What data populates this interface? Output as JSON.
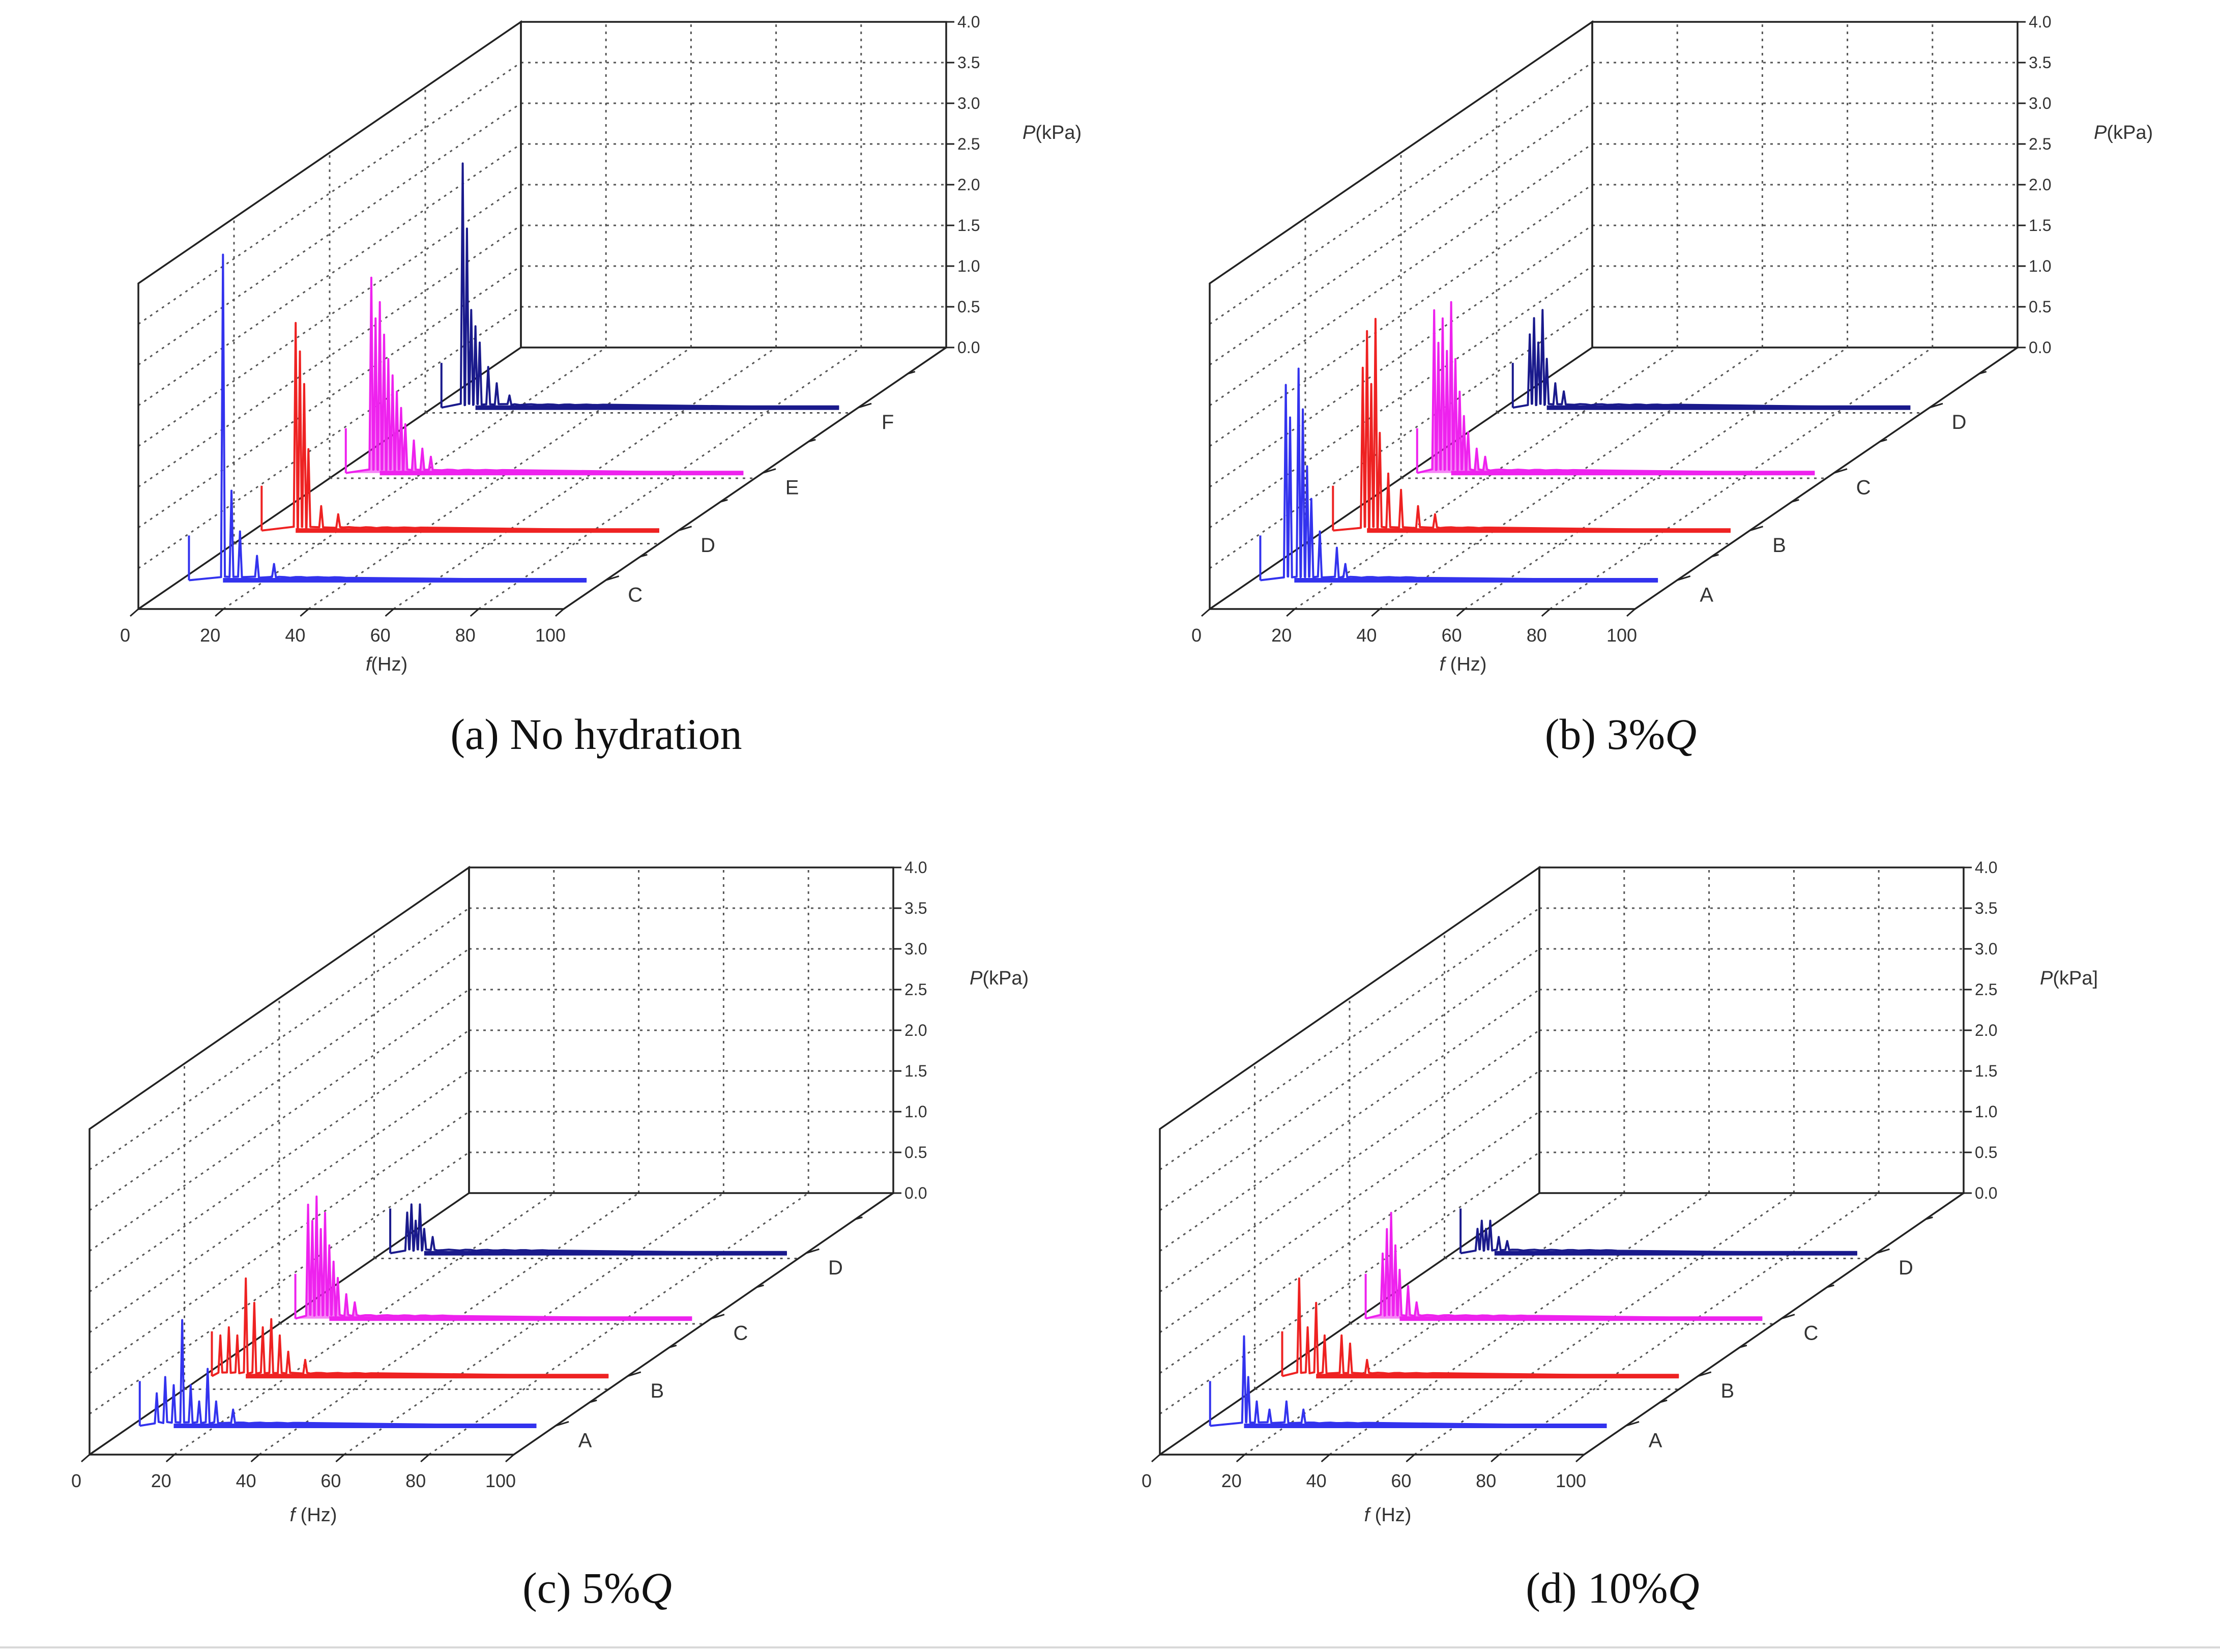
{
  "colors": {
    "blue": "#3333ee",
    "red": "#ee2222",
    "magenta": "#ee22ee",
    "navy": "#1a1a8c"
  },
  "chart_data": [
    {
      "type": "line",
      "panel": "a",
      "caption": "(a) No hydration",
      "caption_italic": "",
      "xlabel_italic": "f",
      "xlabel_rest": "(Hz)",
      "zlabel_italic": "P",
      "zlabel_rest": "(kPa)",
      "x_ticks": [
        "0",
        "20",
        "40",
        "60",
        "80",
        "100"
      ],
      "z_ticks": [
        "0.0",
        "0.5",
        "1.0",
        "1.5",
        "2.0",
        "2.5",
        "3.0",
        "3.5",
        "4.0"
      ],
      "xlim": [
        0,
        100
      ],
      "zlim": [
        0,
        4
      ],
      "series": [
        {
          "name": "C",
          "color": "#3333ee",
          "peaks": [
            [
              10,
              4.0
            ],
            [
              12,
              1.1
            ],
            [
              14,
              0.6
            ],
            [
              18,
              0.3
            ],
            [
              22,
              0.2
            ]
          ],
          "fill": false
        },
        {
          "name": "D",
          "color": "#ee2222",
          "peaks": [
            [
              10,
              2.55
            ],
            [
              11,
              2.2
            ],
            [
              12,
              1.8
            ],
            [
              13,
              1.0
            ],
            [
              16,
              0.3
            ],
            [
              20,
              0.2
            ]
          ],
          "fill": false
        },
        {
          "name": "E",
          "color": "#ee22ee",
          "peaks": [
            [
              8,
              2.4
            ],
            [
              9,
              1.9
            ],
            [
              10,
              2.1
            ],
            [
              11,
              1.7
            ],
            [
              12,
              1.4
            ],
            [
              13,
              1.2
            ],
            [
              14,
              1.0
            ],
            [
              15,
              0.8
            ],
            [
              16,
              0.6
            ],
            [
              18,
              0.4
            ],
            [
              20,
              0.3
            ],
            [
              22,
              0.2
            ]
          ],
          "fill": true
        },
        {
          "name": "F",
          "color": "#1a1a8c",
          "peaks": [
            [
              7,
              3.0
            ],
            [
              8,
              2.2
            ],
            [
              9,
              1.2
            ],
            [
              10,
              1.0
            ],
            [
              11,
              0.8
            ],
            [
              13,
              0.5
            ],
            [
              15,
              0.3
            ],
            [
              18,
              0.15
            ]
          ],
          "fill": false
        }
      ]
    },
    {
      "type": "line",
      "panel": "b",
      "caption": "(b) 3%",
      "caption_italic": "Q",
      "xlabel_italic": "f",
      "xlabel_rest": " (Hz)",
      "zlabel_italic": "P",
      "zlabel_rest": "(kPa)",
      "x_ticks": [
        "0",
        "20",
        "40",
        "60",
        "80",
        "100"
      ],
      "z_ticks": [
        "0.0",
        "0.5",
        "1.0",
        "1.5",
        "2.0",
        "2.5",
        "3.0",
        "3.5",
        "4.0"
      ],
      "xlim": [
        0,
        100
      ],
      "zlim": [
        0,
        4
      ],
      "series": [
        {
          "name": "A",
          "color": "#3333ee",
          "peaks": [
            [
              8,
              2.4
            ],
            [
              9,
              2.0
            ],
            [
              11,
              2.6
            ],
            [
              12,
              2.1
            ],
            [
              13,
              1.4
            ],
            [
              14,
              1.0
            ],
            [
              16,
              0.6
            ],
            [
              20,
              0.4
            ],
            [
              22,
              0.2
            ]
          ],
          "fill": false
        },
        {
          "name": "B",
          "color": "#ee2222",
          "peaks": [
            [
              9,
              2.0
            ],
            [
              10,
              2.45
            ],
            [
              11,
              1.8
            ],
            [
              12,
              2.6
            ],
            [
              13,
              1.2
            ],
            [
              15,
              0.7
            ],
            [
              18,
              0.5
            ],
            [
              22,
              0.3
            ],
            [
              26,
              0.2
            ]
          ],
          "fill": false
        },
        {
          "name": "C",
          "color": "#ee22ee",
          "peaks": [
            [
              6,
              2.0
            ],
            [
              7,
              1.6
            ],
            [
              8,
              1.9
            ],
            [
              9,
              1.5
            ],
            [
              10,
              2.1
            ],
            [
              11,
              1.4
            ],
            [
              12,
              1.0
            ],
            [
              13,
              0.7
            ],
            [
              14,
              0.5
            ],
            [
              16,
              0.3
            ],
            [
              18,
              0.2
            ]
          ],
          "fill": true
        },
        {
          "name": "D",
          "color": "#1a1a8c",
          "peaks": [
            [
              6,
              0.9
            ],
            [
              7,
              1.1
            ],
            [
              8,
              0.8
            ],
            [
              9,
              1.2
            ],
            [
              10,
              0.6
            ],
            [
              12,
              0.3
            ],
            [
              14,
              0.2
            ]
          ],
          "fill": false
        }
      ]
    },
    {
      "type": "line",
      "panel": "c",
      "caption": "(c) 5%",
      "caption_italic": "Q",
      "xlabel_italic": "f",
      "xlabel_rest": " (Hz)",
      "zlabel_italic": "P",
      "zlabel_rest": "(kPa)",
      "x_ticks": [
        "0",
        "20",
        "40",
        "60",
        "80",
        "100"
      ],
      "z_ticks": [
        "0.0",
        "0.5",
        "1.0",
        "1.5",
        "2.0",
        "2.5",
        "3.0",
        "3.5",
        "4.0"
      ],
      "xlim": [
        0,
        100
      ],
      "zlim": [
        0,
        4
      ],
      "series": [
        {
          "name": "A",
          "color": "#3333ee",
          "peaks": [
            [
              6,
              0.4
            ],
            [
              8,
              0.6
            ],
            [
              10,
              0.5
            ],
            [
              12,
              1.3
            ],
            [
              14,
              0.5
            ],
            [
              16,
              0.3
            ],
            [
              18,
              0.7
            ],
            [
              20,
              0.3
            ],
            [
              24,
              0.2
            ]
          ],
          "fill": false
        },
        {
          "name": "B",
          "color": "#ee2222",
          "peaks": [
            [
              4,
              0.5
            ],
            [
              6,
              0.6
            ],
            [
              8,
              0.5
            ],
            [
              10,
              1.2
            ],
            [
              12,
              0.9
            ],
            [
              14,
              0.6
            ],
            [
              16,
              0.7
            ],
            [
              18,
              0.5
            ],
            [
              20,
              0.3
            ],
            [
              24,
              0.2
            ]
          ],
          "fill": false
        },
        {
          "name": "C",
          "color": "#ee22ee",
          "peaks": [
            [
              5,
              1.4
            ],
            [
              6,
              1.2
            ],
            [
              7,
              1.5
            ],
            [
              8,
              1.1
            ],
            [
              9,
              1.3
            ],
            [
              10,
              0.9
            ],
            [
              11,
              0.7
            ],
            [
              12,
              0.5
            ],
            [
              14,
              0.3
            ],
            [
              16,
              0.2
            ]
          ],
          "fill": true
        },
        {
          "name": "D",
          "color": "#1a1a8c",
          "peaks": [
            [
              6,
              0.5
            ],
            [
              7,
              0.6
            ],
            [
              8,
              0.4
            ],
            [
              9,
              0.6
            ],
            [
              10,
              0.3
            ],
            [
              12,
              0.2
            ]
          ],
          "fill": false
        }
      ]
    },
    {
      "type": "line",
      "panel": "d",
      "caption": "(d) 10%",
      "caption_italic": "Q",
      "xlabel_italic": "f",
      "xlabel_rest": " (Hz)",
      "zlabel_italic": "P",
      "zlabel_rest": "(kPa]",
      "x_ticks": [
        "0",
        "20",
        "40",
        "60",
        "80",
        "100"
      ],
      "z_ticks": [
        "0.0",
        "0.5",
        "1.0",
        "1.5",
        "2.0",
        "2.5",
        "3.0",
        "3.5",
        "4.0"
      ],
      "xlim": [
        0,
        100
      ],
      "zlim": [
        0,
        4
      ],
      "series": [
        {
          "name": "A",
          "color": "#3333ee",
          "peaks": [
            [
              10,
              1.1
            ],
            [
              11,
              0.6
            ],
            [
              13,
              0.3
            ],
            [
              16,
              0.2
            ],
            [
              20,
              0.3
            ],
            [
              24,
              0.2
            ]
          ],
          "fill": false
        },
        {
          "name": "B",
          "color": "#ee2222",
          "peaks": [
            [
              6,
              1.2
            ],
            [
              8,
              0.6
            ],
            [
              10,
              0.9
            ],
            [
              12,
              0.5
            ],
            [
              16,
              0.5
            ],
            [
              18,
              0.4
            ],
            [
              22,
              0.2
            ]
          ],
          "fill": false
        },
        {
          "name": "C",
          "color": "#ee22ee",
          "peaks": [
            [
              6,
              0.8
            ],
            [
              7,
              1.1
            ],
            [
              8,
              1.3
            ],
            [
              9,
              0.9
            ],
            [
              10,
              0.6
            ],
            [
              12,
              0.4
            ],
            [
              14,
              0.2
            ]
          ],
          "fill": true
        },
        {
          "name": "D",
          "color": "#1a1a8c",
          "peaks": [
            [
              6,
              0.3
            ],
            [
              7,
              0.4
            ],
            [
              8,
              0.3
            ],
            [
              9,
              0.4
            ],
            [
              11,
              0.2
            ],
            [
              13,
              0.15
            ]
          ],
          "fill": false
        }
      ]
    }
  ]
}
